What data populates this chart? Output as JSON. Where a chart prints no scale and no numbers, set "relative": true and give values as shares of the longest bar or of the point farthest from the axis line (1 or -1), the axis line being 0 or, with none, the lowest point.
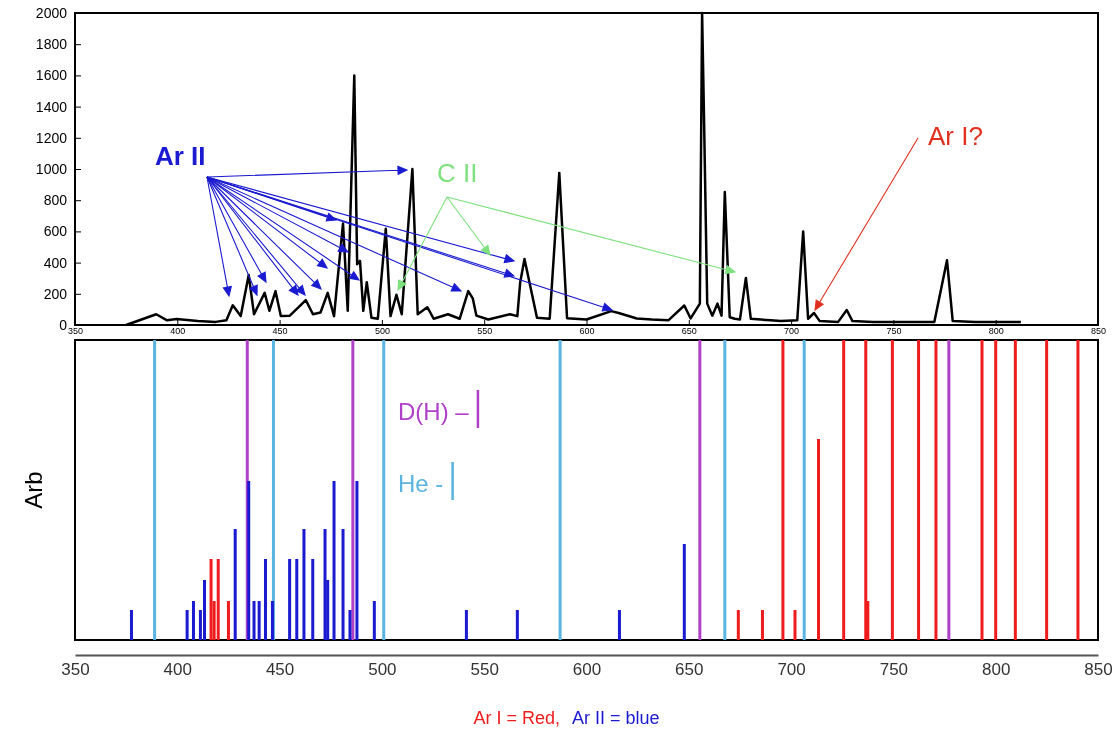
{
  "chart_data": [
    {
      "type": "line",
      "xlim": [
        350,
        850
      ],
      "xticks": [
        350,
        400,
        450,
        500,
        550,
        600,
        650,
        700,
        750,
        800,
        850
      ],
      "ylim": [
        0,
        2000
      ],
      "yticks": [
        0,
        200,
        400,
        600,
        800,
        1000,
        1200,
        1400,
        1600,
        1800,
        2000
      ],
      "series": [
        {
          "color": "#000000",
          "x": [
            375,
            389.7,
            395,
            399.6,
            410,
            418.8,
            424,
            427.1,
            431,
            434.9,
            437.5,
            442.7,
            445,
            448,
            450.6,
            455,
            459.3,
            462.8,
            466.3,
            470,
            473.5,
            476.6,
            481,
            483.3,
            486.5,
            487.9,
            489.3,
            490.9,
            492.6,
            494.9,
            498,
            501.9,
            504.2,
            507.1,
            509.7,
            514.9,
            517.5,
            522.2,
            525.3,
            532.3,
            538,
            542.2,
            544.4,
            546.2,
            552,
            562.6,
            566.2,
            567.6,
            569.7,
            575.8,
            582,
            586.7,
            590.5,
            600,
            612.1,
            615.7,
            624.6,
            632,
            640,
            647.8,
            650.9,
            655.4,
            656.5,
            657.5,
            659,
            661.5,
            664,
            666,
            667.6,
            670,
            672.5,
            675,
            677.9,
            680.3,
            690,
            695,
            703,
            705.9,
            708.3,
            711.2,
            714,
            723,
            727.2,
            730,
            740,
            749.2,
            760,
            770,
            776.2,
            779,
            790,
            800,
            812.3
          ],
          "values": [
            0,
            69,
            30,
            39,
            25,
            20,
            30,
            126,
            57,
            320,
            69,
            206,
            91,
            217,
            57,
            60,
            114,
            160,
            69,
            80,
            206,
            57,
            651,
            91,
            1600,
            389,
            411,
            91,
            274,
            46,
            40,
            617,
            57,
            194,
            69,
            1000,
            69,
            114,
            40,
            69,
            40,
            217,
            171,
            60,
            35,
            69,
            57,
            274,
            423,
            46,
            40,
            975,
            43,
            35,
            89,
            77,
            42,
            35,
            30,
            125,
            42,
            137,
            2000,
            1280,
            137,
            60,
            137,
            60,
            853,
            50,
            40,
            35,
            302,
            40,
            30,
            25,
            30,
            600,
            40,
            77,
            25,
            20,
            96,
            25,
            20,
            20,
            20,
            20,
            415,
            25,
            20,
            20,
            20
          ]
        }
      ],
      "annotations": [
        "Ar II",
        "C II",
        "Ar I?"
      ]
    },
    {
      "type": "bar",
      "relative": true,
      "ylabel": "Arb",
      "xlim": [
        350,
        850
      ],
      "xticks": [
        350,
        400,
        450,
        500,
        550,
        600,
        650,
        700,
        750,
        800,
        850
      ],
      "legend": "top",
      "series": [
        {
          "name": "D(H) –",
          "color": "#b040c8",
          "x": [
            434.2,
            485.8,
            655.4,
            777.1
          ],
          "values": [
            1,
            1,
            1,
            1
          ]
        },
        {
          "name": "He -",
          "color": "#5ab4e0",
          "x": [
            388.9,
            447,
            500.9,
            587.1,
            667.6,
            706.4
          ],
          "values": [
            1,
            1,
            1,
            1,
            1,
            1
          ]
        },
        {
          "name": "Ar I = Red,",
          "color": "#ee1c1c",
          "x": [
            416.5,
            418,
            420,
            425,
            674.2,
            686,
            696,
            701.9,
            713.4,
            725.7,
            736.5,
            737.5,
            749.5,
            762.3,
            770.8,
            793.3,
            800,
            809.6,
            824.9,
            840.2
          ],
          "values": [
            0.27,
            0.13,
            0.27,
            0.13,
            0.1,
            0.1,
            1,
            0.1,
            0.67,
            1,
            1,
            0.13,
            1,
            1,
            1,
            1,
            1,
            1,
            1,
            1
          ]
        },
        {
          "name": "Ar II = blue",
          "color": "#1a1ad0",
          "x": [
            377.6,
            404.8,
            407.9,
            411.3,
            413.3,
            428.3,
            434.9,
            437.5,
            440,
            443.1,
            446.5,
            454.9,
            458.4,
            461.9,
            466.2,
            472.2,
            473.5,
            476.6,
            481,
            484.4,
            487.8,
            496.3,
            541.3,
            566.2,
            616.1,
            647.8
          ],
          "values": [
            0.1,
            0.1,
            0.13,
            0.1,
            0.2,
            0.37,
            0.53,
            0.13,
            0.13,
            0.27,
            0.13,
            0.27,
            0.27,
            0.37,
            0.27,
            0.37,
            0.2,
            0.53,
            0.37,
            0.1,
            0.53,
            0.13,
            0.1,
            0.1,
            0.1,
            0.32
          ]
        }
      ]
    }
  ]
}
